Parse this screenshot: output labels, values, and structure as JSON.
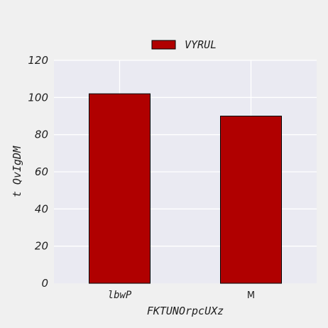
{
  "chart_data": {
    "type": "bar",
    "categories": [
      "lbwP",
      "M"
    ],
    "series": [
      {
        "name": "VYRUL",
        "values": [
          102,
          90
        ],
        "color": "#b00000"
      }
    ],
    "xlabel": "FKTUNOrpcUXz",
    "ylabel": "t QvIgDM",
    "ylim": [
      0,
      120
    ],
    "yticks": [
      0,
      20,
      40,
      60,
      80,
      100,
      120
    ],
    "grid": true,
    "legend_position": "top-center",
    "plot_background": "#eaeaf2",
    "edge_color": "#000000"
  }
}
